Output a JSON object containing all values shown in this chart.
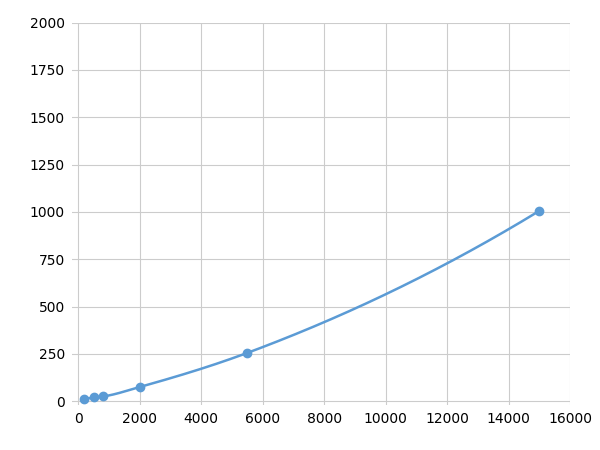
{
  "x": [
    200,
    500,
    800,
    2000,
    5500,
    15000
  ],
  "y": [
    10,
    20,
    25,
    75,
    255,
    1005
  ],
  "line_color": "#5b9bd5",
  "marker_color": "#5b9bd5",
  "marker_size": 6,
  "line_width": 1.8,
  "xlim": [
    -200,
    16000
  ],
  "ylim": [
    -20,
    2000
  ],
  "xticks": [
    0,
    2000,
    4000,
    6000,
    8000,
    10000,
    12000,
    14000,
    16000
  ],
  "yticks": [
    0,
    250,
    500,
    750,
    1000,
    1250,
    1500,
    1750,
    2000
  ],
  "grid_color": "#cccccc",
  "background_color": "#ffffff",
  "tick_labelsize": 10,
  "figure_width": 6.0,
  "figure_height": 4.5,
  "dpi": 100
}
